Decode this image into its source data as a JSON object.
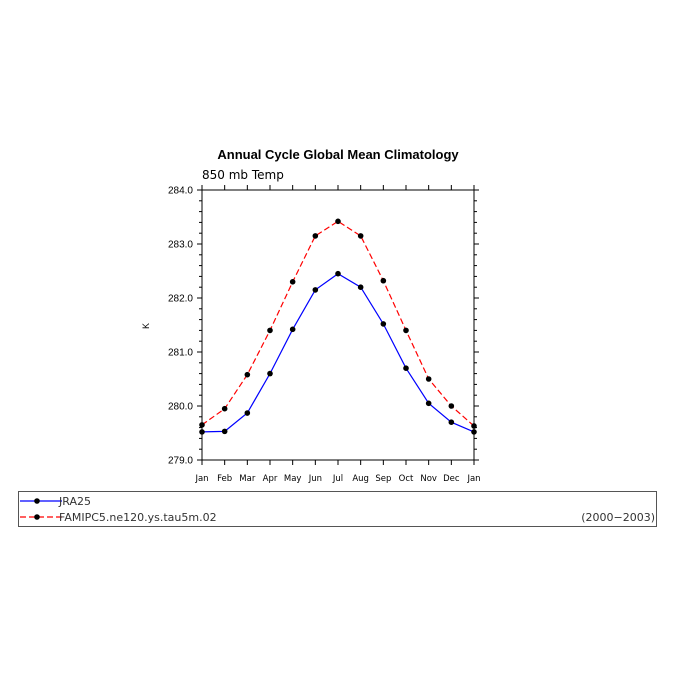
{
  "chart_data": {
    "type": "line",
    "title": "Annual Cycle Global Mean Climatology",
    "subtitle": "850 mb Temp",
    "xlabel": "",
    "ylabel": "K",
    "categories": [
      "Jan",
      "Feb",
      "Mar",
      "Apr",
      "May",
      "Jun",
      "Jul",
      "Aug",
      "Sep",
      "Oct",
      "Nov",
      "Dec",
      "Jan"
    ],
    "ylim": [
      279.0,
      284.0
    ],
    "yticks": [
      "279.0",
      "280.0",
      "281.0",
      "282.0",
      "283.0",
      "284.0"
    ],
    "grid": false,
    "legend_position": "bottom",
    "period_label": "(2000−2003)",
    "series": [
      {
        "name": "JRA25",
        "color": "#0000ff",
        "dash": "solid",
        "values": [
          279.52,
          279.53,
          279.87,
          280.6,
          281.42,
          282.15,
          282.45,
          282.2,
          281.52,
          280.7,
          280.05,
          279.7,
          279.52
        ]
      },
      {
        "name": "FAMIPC5.ne120.ys.tau5m.02",
        "color": "#ff0000",
        "dash": "dashed",
        "values": [
          279.65,
          279.95,
          280.58,
          281.4,
          282.3,
          283.15,
          283.42,
          283.15,
          282.32,
          281.4,
          280.5,
          280.0,
          279.63
        ]
      }
    ]
  }
}
